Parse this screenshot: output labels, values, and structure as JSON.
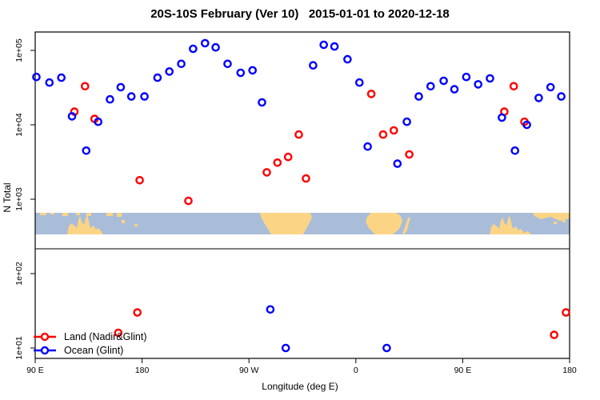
{
  "title": "20S-10S February (Ver 10)   2015-01-01 to 2020-12-18",
  "colors": {
    "land_series": "#ff0000",
    "ocean_series": "#0000ff",
    "map_land": "#fbd585",
    "map_ocean": "#a9bdd9",
    "axis": "#000000",
    "separator_line": "#333333",
    "background": "#ffffff"
  },
  "chart_data": {
    "type": "scatter",
    "title": "20S-10S February (Ver 10)   2015-01-01 to 2020-12-18",
    "xlabel": "Longitude (deg E)",
    "ylabel": "N Total",
    "grid": false,
    "legend_position": "bottom-left",
    "x_axis": {
      "range_deg": [
        90,
        540
      ],
      "ticks": [
        {
          "deg": 90,
          "label": "90 E"
        },
        {
          "deg": 180,
          "label": "180"
        },
        {
          "deg": 270,
          "label": "90 W"
        },
        {
          "deg": 360,
          "label": "0"
        },
        {
          "deg": 450,
          "label": "90 E"
        },
        {
          "deg": 540,
          "label": "180"
        }
      ]
    },
    "y_axis": {
      "scale": "log10",
      "range_exp": [
        0.86,
        5.25
      ],
      "ticks": [
        {
          "exp": 1,
          "label": "1e+01"
        },
        {
          "exp": 2,
          "label": "1e+02"
        },
        {
          "exp": 3,
          "label": "1e+03"
        },
        {
          "exp": 4,
          "label": "1e+04"
        },
        {
          "exp": 5,
          "label": "1e+05"
        }
      ]
    },
    "map_band": {
      "description": "world map strip of the 20S-10S latitude band",
      "lat_band": "20S-10S"
    },
    "series": [
      {
        "id": "land",
        "name": "Land (Nadir&Glint)",
        "color": "#ff0000",
        "points": [
          {
            "lon": 132,
            "n": 33000
          },
          {
            "lon": 123,
            "n": 15000
          },
          {
            "lon": 140,
            "n": 12000
          },
          {
            "lon": 178,
            "n": 1800
          },
          {
            "lon": 219,
            "n": 950
          },
          {
            "lon": 285,
            "n": 2300
          },
          {
            "lon": 294,
            "n": 3100
          },
          {
            "lon": 303,
            "n": 3700
          },
          {
            "lon": 312,
            "n": 7400
          },
          {
            "lon": 318,
            "n": 1900
          },
          {
            "lon": 373,
            "n": 26000
          },
          {
            "lon": 383,
            "n": 7400
          },
          {
            "lon": 392,
            "n": 8400
          },
          {
            "lon": 405,
            "n": 4000
          },
          {
            "lon": 485,
            "n": 15000
          },
          {
            "lon": 493,
            "n": 33000
          },
          {
            "lon": 502,
            "n": 11000
          },
          {
            "lon": 160,
            "n": 16
          },
          {
            "lon": 176,
            "n": 30
          },
          {
            "lon": 527,
            "n": 15
          },
          {
            "lon": 537,
            "n": 30
          }
        ]
      },
      {
        "id": "ocean",
        "name": "Ocean (Glint)",
        "color": "#0000ff",
        "points": [
          {
            "lon": 91,
            "n": 44000
          },
          {
            "lon": 102,
            "n": 37000
          },
          {
            "lon": 112,
            "n": 43000
          },
          {
            "lon": 121,
            "n": 13000
          },
          {
            "lon": 133,
            "n": 4500
          },
          {
            "lon": 143,
            "n": 11000
          },
          {
            "lon": 153,
            "n": 22000
          },
          {
            "lon": 162,
            "n": 32000
          },
          {
            "lon": 171,
            "n": 24000
          },
          {
            "lon": 182,
            "n": 24000
          },
          {
            "lon": 193,
            "n": 43000
          },
          {
            "lon": 203,
            "n": 52000
          },
          {
            "lon": 213,
            "n": 66000
          },
          {
            "lon": 223,
            "n": 105000
          },
          {
            "lon": 233,
            "n": 125000
          },
          {
            "lon": 242,
            "n": 110000
          },
          {
            "lon": 252,
            "n": 66000
          },
          {
            "lon": 263,
            "n": 50000
          },
          {
            "lon": 273,
            "n": 54000
          },
          {
            "lon": 281,
            "n": 20000
          },
          {
            "lon": 288,
            "n": 33
          },
          {
            "lon": 301,
            "n": 10
          },
          {
            "lon": 324,
            "n": 63000
          },
          {
            "lon": 333,
            "n": 119000
          },
          {
            "lon": 342,
            "n": 113000
          },
          {
            "lon": 353,
            "n": 76000
          },
          {
            "lon": 363,
            "n": 37000
          },
          {
            "lon": 370,
            "n": 5100
          },
          {
            "lon": 386,
            "n": 10
          },
          {
            "lon": 395,
            "n": 3000
          },
          {
            "lon": 403,
            "n": 11000
          },
          {
            "lon": 413,
            "n": 24000
          },
          {
            "lon": 423,
            "n": 33000
          },
          {
            "lon": 434,
            "n": 39000
          },
          {
            "lon": 443,
            "n": 30000
          },
          {
            "lon": 453,
            "n": 44000
          },
          {
            "lon": 463,
            "n": 35000
          },
          {
            "lon": 473,
            "n": 42000
          },
          {
            "lon": 483,
            "n": 12500
          },
          {
            "lon": 494,
            "n": 4500
          },
          {
            "lon": 504,
            "n": 10000
          },
          {
            "lon": 514,
            "n": 23000
          },
          {
            "lon": 524,
            "n": 32000
          },
          {
            "lon": 533,
            "n": 24000
          }
        ]
      }
    ]
  }
}
